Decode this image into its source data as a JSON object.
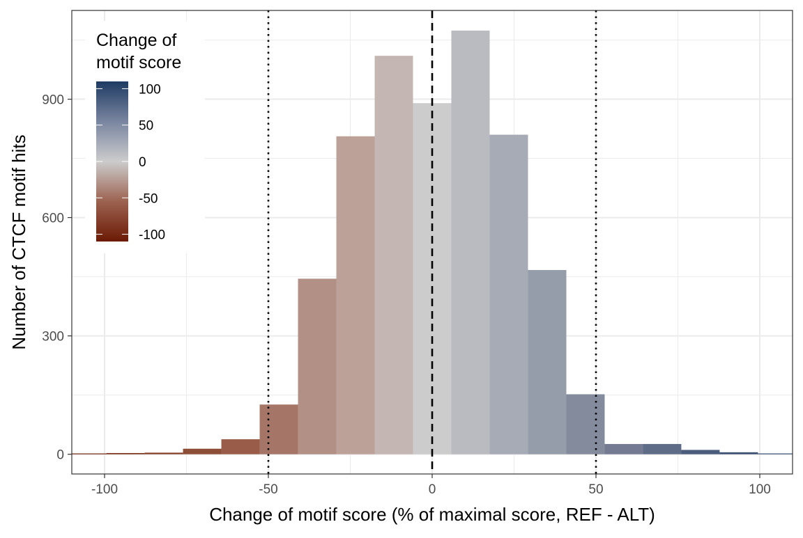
{
  "chart_data": {
    "type": "bar",
    "subtype": "histogram",
    "title": "",
    "xlabel": "Change of motif score (% of maximal score, REF - ALT)",
    "ylabel": "Number of CTCF motif hits",
    "xlim": [
      -110,
      110
    ],
    "ylim": [
      -50,
      1125
    ],
    "x_ticks": [
      -100,
      -50,
      0,
      50,
      100
    ],
    "x_tick_labels": [
      "-100",
      "-50",
      "0",
      "50",
      "100"
    ],
    "y_ticks": [
      0,
      300,
      600,
      900
    ],
    "y_tick_labels": [
      "0",
      "300",
      "600",
      "900"
    ],
    "grid": true,
    "bin_width": 11.7,
    "bins": [
      {
        "x": -105.3,
        "count": 2,
        "color": "#6b1a04"
      },
      {
        "x": -93.6,
        "count": 3,
        "color": "#7a3118"
      },
      {
        "x": -81.9,
        "count": 4,
        "color": "#85402a"
      },
      {
        "x": -70.2,
        "count": 14,
        "color": "#8d4e38"
      },
      {
        "x": -58.5,
        "count": 38,
        "color": "#985c49"
      },
      {
        "x": -46.8,
        "count": 126,
        "color": "#a57667"
      },
      {
        "x": -35.1,
        "count": 445,
        "color": "#b39085"
      },
      {
        "x": -23.4,
        "count": 806,
        "color": "#bba197"
      },
      {
        "x": -11.7,
        "count": 1010,
        "color": "#c4b6b3"
      },
      {
        "x": 0.0,
        "count": 890,
        "color": "#cccccc"
      },
      {
        "x": 11.7,
        "count": 1074,
        "color": "#b9bbc1"
      },
      {
        "x": 23.4,
        "count": 810,
        "color": "#a6abb6"
      },
      {
        "x": 35.1,
        "count": 467,
        "color": "#959daa"
      },
      {
        "x": 46.8,
        "count": 152,
        "color": "#838b9d"
      },
      {
        "x": 58.5,
        "count": 26,
        "color": "#737a92"
      },
      {
        "x": 70.2,
        "count": 26,
        "color": "#5f6c87"
      },
      {
        "x": 81.9,
        "count": 11,
        "color": "#4b5c7d"
      },
      {
        "x": 93.6,
        "count": 5,
        "color": "#3c5074"
      },
      {
        "x": 105.3,
        "count": 2,
        "color": "#2f466d"
      }
    ],
    "reference_lines": [
      {
        "x": -50,
        "style": "dotted",
        "color": "#000000"
      },
      {
        "x": 0,
        "style": "dashed",
        "color": "#000000"
      },
      {
        "x": 50,
        "style": "dotted",
        "color": "#000000"
      }
    ],
    "legend": {
      "title_lines": [
        "Change of",
        "motif score"
      ],
      "position": "top-left",
      "type": "colorbar",
      "range": [
        -110,
        110
      ],
      "breaks": [
        100,
        50,
        0,
        -50,
        -100
      ],
      "labels": [
        "100",
        "50",
        "0",
        "-50",
        "-100"
      ],
      "colors": {
        "low": "#6b1a04",
        "mid": "#cccccc",
        "high": "#1f3b62"
      }
    },
    "colors": {
      "panel_border": "#333333",
      "grid": "#ebebeb",
      "background": "#ffffff"
    }
  }
}
